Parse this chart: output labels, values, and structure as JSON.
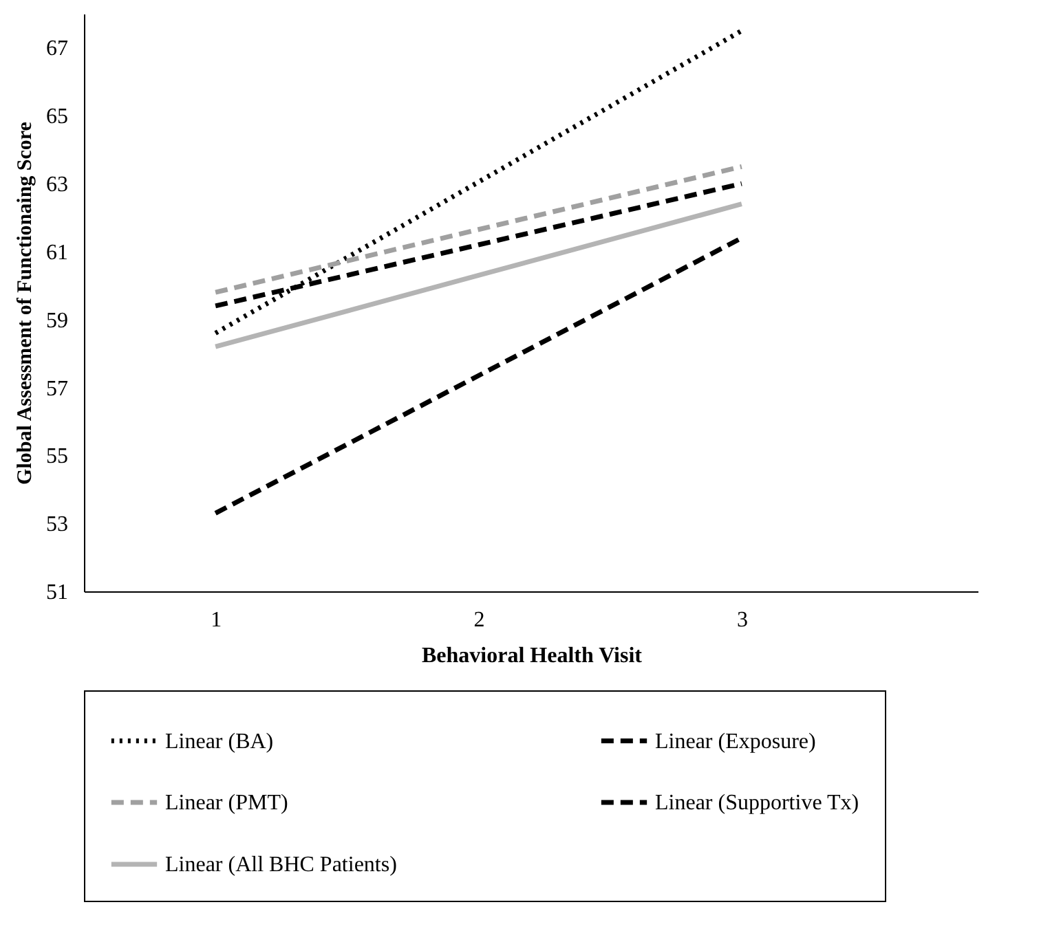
{
  "chart_data": {
    "type": "line",
    "xlabel": "Behavioral Health Visit",
    "ylabel": "Global Assessment of Functionaing  Score",
    "categories": [
      "1",
      "2",
      "3"
    ],
    "ylim": [
      51,
      68
    ],
    "yticks": [
      51,
      53,
      55,
      57,
      59,
      61,
      63,
      65,
      67
    ],
    "grid": false,
    "legend": "bottom",
    "marker": "none",
    "series": [
      {
        "name": "Linear (BA)",
        "color": "#000000",
        "line_style": "dotted",
        "values": [
          58.6,
          63.05,
          67.5
        ]
      },
      {
        "name": "Linear (Exposure)",
        "color": "#000000",
        "line_style": "dashed",
        "values": [
          53.3,
          57.35,
          61.4
        ]
      },
      {
        "name": "Linear (PMT)",
        "color": "#a0a0a0",
        "line_style": "dashed",
        "values": [
          59.8,
          61.65,
          63.5
        ]
      },
      {
        "name": "Linear (Supportive Tx)",
        "color": "#000000",
        "line_style": "dashed",
        "values": [
          59.4,
          61.2,
          63.0
        ]
      },
      {
        "name": "Linear (All BHC Patients)",
        "color": "#b4b4b4",
        "line_style": "solid",
        "values": [
          58.2,
          60.3,
          62.4
        ]
      }
    ]
  }
}
